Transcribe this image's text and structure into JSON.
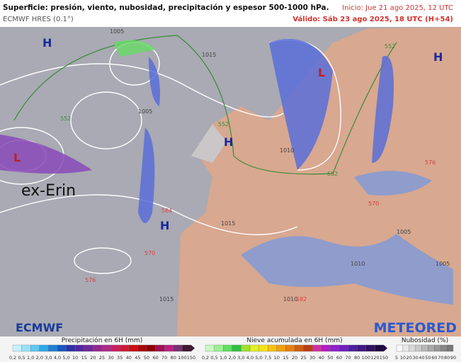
{
  "header": {
    "title": "Superficie: presión, viento, nubosidad, precipitación y espesor 500-1000 hPa.",
    "model": "ECMWF HRES (0.1°)",
    "init": "Inicio: Jue 21 ago 2025, 12 UTC",
    "valid": "Válido: Sáb 23 ago 2025, 18 UTC (H+54)"
  },
  "map": {
    "centers": [
      "H",
      "H",
      "H",
      "H",
      "L",
      "L"
    ],
    "storm": "ex-Erin",
    "isobars": [
      "1005",
      "1015",
      "1005",
      "1010",
      "1015",
      "1010",
      "1005",
      "1015",
      "1010",
      "1005"
    ],
    "thickness": [
      "552",
      "552",
      "552",
      "552",
      "564",
      "570",
      "576",
      "582",
      "570",
      "576"
    ]
  },
  "legend": {
    "precip": {
      "title": "Precipitación en 6H (mm)",
      "ticks": [
        "0,2",
        "0,5",
        "1,0",
        "2,0",
        "3,0",
        "4,0",
        "5,0",
        "10",
        "15",
        "20",
        "25",
        "30",
        "35",
        "40",
        "45",
        "50",
        "60",
        "70",
        "80",
        "100",
        "150"
      ]
    },
    "snow": {
      "title": "Nieve acumulada en 6H (mm)",
      "ticks": [
        "0,2",
        "0,5",
        "1,0",
        "2,0",
        "3,0",
        "4,0",
        "5,0",
        "7,5",
        "10",
        "15",
        "20",
        "25",
        "30",
        "40",
        "50",
        "60",
        "70",
        "80",
        "100",
        "120",
        "150"
      ]
    },
    "cloud": {
      "title": "Nubosidad (%)",
      "ticks": [
        "5",
        "10",
        "20",
        "30",
        "40",
        "50",
        "60",
        "70",
        "80",
        "90"
      ]
    }
  },
  "logos": {
    "left": "ECMWF",
    "right": "METEORED"
  }
}
